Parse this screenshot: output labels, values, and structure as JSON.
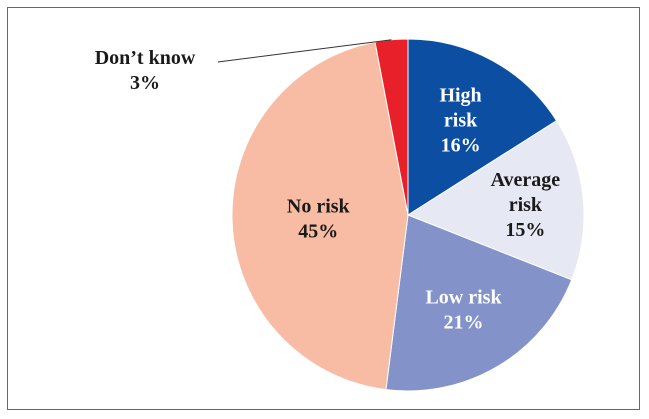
{
  "chart_data": {
    "type": "pie",
    "title": "",
    "start_angle_deg": 0,
    "direction": "clockwise",
    "slices": [
      {
        "label": "High risk",
        "value": 16,
        "value_label": "16%",
        "color": "#0b4ea2",
        "text_color": "#ffffff"
      },
      {
        "label": "Average risk",
        "value": 15,
        "value_label": "15%",
        "color": "#e6e9f4",
        "text_color": "#1a1a1a"
      },
      {
        "label": "Low risk",
        "value": 21,
        "value_label": "21%",
        "color": "#8392c8",
        "text_color": "#ffffff"
      },
      {
        "label": "No risk",
        "value": 45,
        "value_label": "45%",
        "color": "#f8bba3",
        "text_color": "#1a1a1a"
      },
      {
        "label": "Don’t know",
        "value": 3,
        "value_label": "3%",
        "color": "#e8202a",
        "text_color": "#1a1a1a"
      }
    ]
  }
}
